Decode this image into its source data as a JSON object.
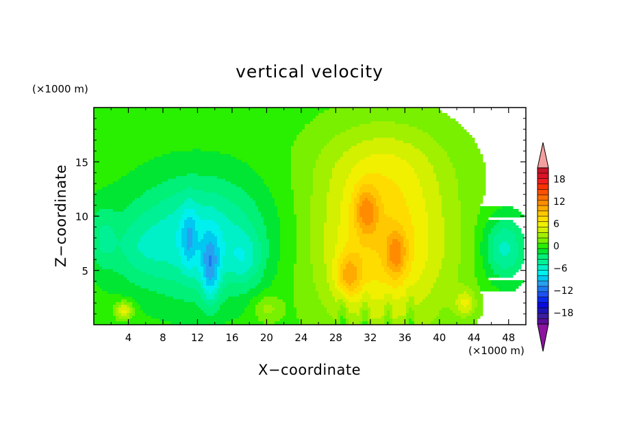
{
  "chart_data": {
    "type": "heatmap",
    "title": "vertical velocity",
    "xlabel": "X−coordinate",
    "ylabel": "Z−coordinate",
    "x_unit": "(×1000 m)",
    "y_unit": "(×1000 m)",
    "xlim": [
      0,
      50
    ],
    "ylim": [
      0,
      20
    ],
    "x_ticks": [
      4,
      8,
      12,
      16,
      20,
      24,
      28,
      32,
      36,
      40,
      44,
      48
    ],
    "x_tick_labels": [
      "4",
      "8",
      "12",
      "16",
      "20",
      "24",
      "28",
      "32",
      "36",
      "40",
      "44",
      "48"
    ],
    "y_ticks": [
      5,
      10,
      15
    ],
    "y_tick_labels": [
      "5",
      "10",
      "15"
    ],
    "colorbar": {
      "levels": [
        -21,
        -19.5,
        -18,
        -16.5,
        -15,
        -13.5,
        -12,
        -10.5,
        -9,
        -7.5,
        -6,
        -4.5,
        -3,
        -1.5,
        0,
        1.5,
        3,
        4.5,
        6,
        7.5,
        9,
        10.5,
        12,
        13.5,
        15,
        16.5,
        18,
        19.5,
        21
      ],
      "colors": [
        "#5a0f96",
        "#3c1ea0",
        "#1e14b4",
        "#0a0adc",
        "#0a28f0",
        "#1e50f0",
        "#1e78f0",
        "#28a0f0",
        "#00c8f0",
        "#00f0f0",
        "#00f0c8",
        "#00f096",
        "#00f078",
        "#00e632",
        "#28f000",
        "#78f000",
        "#a0f000",
        "#d2f000",
        "#f0f000",
        "#ffdc00",
        "#ffc800",
        "#ffaa00",
        "#ff8c00",
        "#ff6e00",
        "#ff5000",
        "#ff3200",
        "#f01e1e",
        "#dc1428",
        "#c81428"
      ],
      "under_color": "#8c14a0",
      "over_color": "#f5a0a0",
      "tick_values": [
        18,
        12,
        6,
        0,
        -6,
        -12,
        -18
      ],
      "tick_labels": [
        "18",
        "12",
        "6",
        "0",
        "−6",
        "−12",
        "−18"
      ]
    },
    "grid": false,
    "legend": "colorbar-right"
  }
}
